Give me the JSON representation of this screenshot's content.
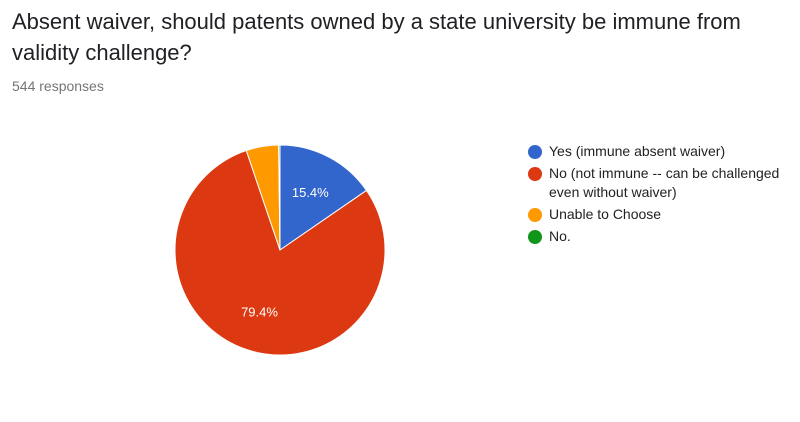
{
  "question": {
    "title": "Absent waiver, should patents owned by a state university be immune from validity challenge?",
    "responses": "544 responses"
  },
  "chart_data": {
    "type": "pie",
    "categories": [
      "Yes (immune absent waiver)",
      "No (not immune -- can be challenged even without waiver)",
      "Unable to Choose",
      "No."
    ],
    "values": [
      15.4,
      79.4,
      5.0,
      0.2
    ],
    "colors": [
      "#3366cc",
      "#dc3912",
      "#ff9900",
      "#109618"
    ],
    "data_labels": [
      "15.4%",
      "79.4%",
      "",
      ""
    ],
    "start_angle_deg": 90,
    "direction": "clockwise",
    "legend_position": "right"
  }
}
